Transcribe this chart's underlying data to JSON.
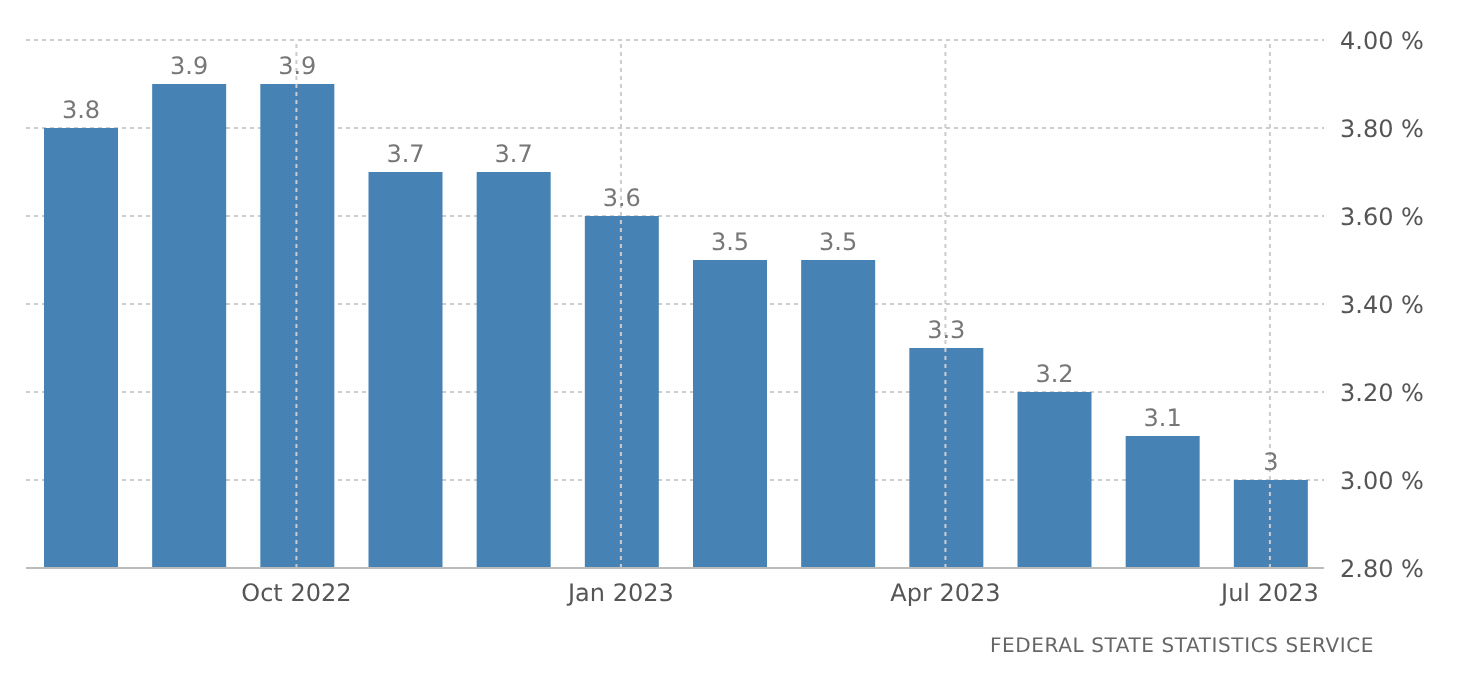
{
  "chart_data": {
    "type": "bar",
    "categories": [
      null,
      null,
      "Oct 2022",
      null,
      null,
      "Jan 2023",
      null,
      null,
      "Apr 2023",
      null,
      null,
      "Jul 2023"
    ],
    "values": [
      3.8,
      3.9,
      3.9,
      3.7,
      3.7,
      3.6,
      3.5,
      3.5,
      3.3,
      3.2,
      3.1,
      3
    ],
    "color": "#4682b4",
    "ylim": [
      2.8,
      4.0
    ],
    "yticks": [
      {
        "value": 2.8,
        "label": "2.80 %"
      },
      {
        "value": 3.0,
        "label": "3.00 %"
      },
      {
        "value": 3.2,
        "label": "3.20 %"
      },
      {
        "value": 3.4,
        "label": "3.40 %"
      },
      {
        "value": 3.6,
        "label": "3.60 %"
      },
      {
        "value": 3.8,
        "label": "3.80 %"
      },
      {
        "value": 4.0,
        "label": "4.00 %"
      }
    ],
    "grid": true,
    "data_labels": true,
    "annotations": [
      "FEDERAL STATE STATISTICS SERVICE"
    ]
  }
}
